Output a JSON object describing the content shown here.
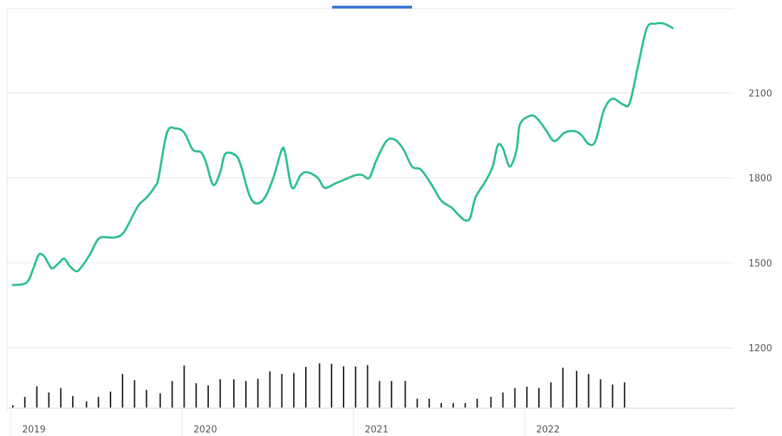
{
  "chart_data": {
    "type": "line",
    "colors": {
      "line": "#2dbf8f",
      "volume": "#222222",
      "tab_indicator": "#3b78d8",
      "grid": "#e6e6e6"
    },
    "ylim": [
      1000,
      2350
    ],
    "y_ticks": [
      1200,
      1500,
      1800,
      2100
    ],
    "x_ticks": [
      {
        "label": "2019",
        "t": 0.0
      },
      {
        "label": "2020",
        "t": 1.0
      },
      {
        "label": "2021",
        "t": 2.0
      },
      {
        "label": "2022",
        "t": 3.0
      }
    ],
    "xlim": [
      0.0,
      4.16
    ],
    "series": [
      {
        "values": [
          [
            0.0,
            1421
          ],
          [
            0.08,
            1430
          ],
          [
            0.12,
            1480
          ],
          [
            0.15,
            1528
          ],
          [
            0.18,
            1525
          ],
          [
            0.21,
            1495
          ],
          [
            0.23,
            1480
          ],
          [
            0.27,
            1500
          ],
          [
            0.3,
            1515
          ],
          [
            0.33,
            1490
          ],
          [
            0.37,
            1470
          ],
          [
            0.4,
            1485
          ],
          [
            0.45,
            1530
          ],
          [
            0.5,
            1585
          ],
          [
            0.55,
            1590
          ],
          [
            0.6,
            1590
          ],
          [
            0.65,
            1610
          ],
          [
            0.73,
            1700
          ],
          [
            0.78,
            1730
          ],
          [
            0.83,
            1770
          ],
          [
            0.85,
            1800
          ],
          [
            0.9,
            1960
          ],
          [
            0.95,
            1975
          ],
          [
            1.0,
            1960
          ],
          [
            1.05,
            1900
          ],
          [
            1.1,
            1890
          ],
          [
            1.13,
            1850
          ],
          [
            1.17,
            1775
          ],
          [
            1.21,
            1820
          ],
          [
            1.24,
            1885
          ],
          [
            1.3,
            1880
          ],
          [
            1.33,
            1845
          ],
          [
            1.38,
            1740
          ],
          [
            1.42,
            1710
          ],
          [
            1.47,
            1730
          ],
          [
            1.52,
            1800
          ],
          [
            1.57,
            1900
          ],
          [
            1.59,
            1885
          ],
          [
            1.63,
            1765
          ],
          [
            1.68,
            1810
          ],
          [
            1.72,
            1820
          ],
          [
            1.78,
            1800
          ],
          [
            1.82,
            1765
          ],
          [
            1.88,
            1780
          ],
          [
            1.94,
            1795
          ],
          [
            2.0,
            1810
          ],
          [
            2.04,
            1810
          ],
          [
            2.08,
            1800
          ],
          [
            2.12,
            1860
          ],
          [
            2.18,
            1930
          ],
          [
            2.23,
            1935
          ],
          [
            2.28,
            1900
          ],
          [
            2.33,
            1840
          ],
          [
            2.38,
            1830
          ],
          [
            2.44,
            1780
          ],
          [
            2.5,
            1720
          ],
          [
            2.56,
            1695
          ],
          [
            2.6,
            1670
          ],
          [
            2.64,
            1650
          ],
          [
            2.67,
            1660
          ],
          [
            2.7,
            1730
          ],
          [
            2.76,
            1790
          ],
          [
            2.8,
            1840
          ],
          [
            2.83,
            1915
          ],
          [
            2.86,
            1905
          ],
          [
            2.9,
            1840
          ],
          [
            2.94,
            1900
          ],
          [
            2.96,
            1990
          ],
          [
            3.02,
            2020
          ],
          [
            3.06,
            2010
          ],
          [
            3.11,
            1970
          ],
          [
            3.16,
            1930
          ],
          [
            3.22,
            1960
          ],
          [
            3.28,
            1965
          ],
          [
            3.32,
            1950
          ],
          [
            3.36,
            1920
          ],
          [
            3.4,
            1930
          ],
          [
            3.45,
            2040
          ],
          [
            3.5,
            2080
          ],
          [
            3.56,
            2060
          ],
          [
            3.6,
            2065
          ],
          [
            3.65,
            2200
          ],
          [
            3.7,
            2330
          ],
          [
            3.75,
            2345
          ],
          [
            3.8,
            2345
          ],
          [
            3.85,
            2330
          ]
        ]
      }
    ],
    "volume": {
      "t": [
        0.0,
        0.07,
        0.14,
        0.21,
        0.28,
        0.35,
        0.43,
        0.5,
        0.57,
        0.64,
        0.71,
        0.78,
        0.86,
        0.93,
        1.0,
        1.07,
        1.14,
        1.21,
        1.29,
        1.36,
        1.43,
        1.5,
        1.57,
        1.64,
        1.71,
        1.79,
        1.86,
        1.93,
        2.0,
        2.07,
        2.14,
        2.21,
        2.29,
        2.36,
        2.43,
        2.5,
        2.57,
        2.64,
        2.71,
        2.79,
        2.86,
        2.93,
        3.0,
        3.07,
        3.14,
        3.21,
        3.29,
        3.36,
        3.43,
        3.5,
        3.57
      ],
      "values": [
        5,
        24,
        48,
        34,
        44,
        26,
        14,
        24,
        36,
        76,
        62,
        40,
        32,
        60,
        95,
        55,
        50,
        64,
        64,
        60,
        65,
        82,
        76,
        78,
        92,
        100,
        99,
        93,
        93,
        96,
        60,
        60,
        60,
        20,
        20,
        10,
        10,
        10,
        20,
        24,
        34,
        44,
        47,
        44,
        57,
        90,
        83,
        76,
        64,
        52,
        57
      ],
      "max": 100
    }
  }
}
